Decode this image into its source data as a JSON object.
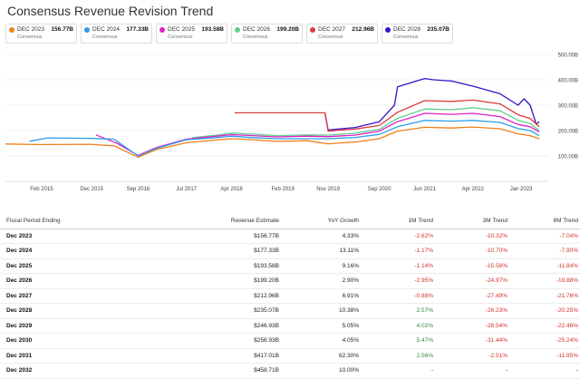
{
  "title": "Consensus Revenue Revision Trend",
  "legend": [
    {
      "name": "DEC 2023",
      "value": "156.77B",
      "sub": "Consensus",
      "color": "#f07f19"
    },
    {
      "name": "DEC 2024",
      "value": "177.33B",
      "sub": "Consensus",
      "color": "#2d9ee6"
    },
    {
      "name": "DEC 2025",
      "value": "193.58B",
      "sub": "Consensus",
      "color": "#e21fc7"
    },
    {
      "name": "DEC 2026",
      "value": "199.20B",
      "sub": "Consensus",
      "color": "#5fd08e"
    },
    {
      "name": "DEC 2027",
      "value": "212.96B",
      "sub": "Consensus",
      "color": "#d93c3c"
    },
    {
      "name": "DEC 2028",
      "value": "235.07B",
      "sub": "Consensus",
      "color": "#3a10c9"
    }
  ],
  "chart_data": {
    "type": "line",
    "ylim": [
      0,
      500
    ],
    "yticks": [
      "100.00B",
      "200.00B",
      "300.00B",
      "400.00B",
      "500.00B"
    ],
    "ytick_values": [
      100,
      200,
      300,
      400,
      500
    ],
    "xticks": [
      "Feb 2015",
      "Dec 2015",
      "Sep 2016",
      "Jul 2017",
      "Apr 2018",
      "Feb 2019",
      "Nov 2019",
      "Sep 2020",
      "Jun 2021",
      "Apr 2022",
      "Jan 2023"
    ],
    "xtick_values": [
      2015.1,
      2015.93,
      2016.7,
      2017.5,
      2018.25,
      2019.1,
      2019.85,
      2020.7,
      2021.45,
      2022.25,
      2023.05
    ],
    "xlim": [
      2014.5,
      2023.5
    ],
    "grid": true,
    "series": [
      {
        "name": "DEC 2023",
        "color": "#f07f19",
        "points": [
          [
            2014.5,
            147
          ],
          [
            2015.0,
            145
          ],
          [
            2015.3,
            145
          ],
          [
            2015.9,
            146
          ],
          [
            2016.3,
            140
          ],
          [
            2016.7,
            95
          ],
          [
            2017.0,
            125
          ],
          [
            2017.5,
            152
          ],
          [
            2018.0,
            163
          ],
          [
            2018.25,
            168
          ],
          [
            2018.6,
            164
          ],
          [
            2019.0,
            157
          ],
          [
            2019.5,
            160
          ],
          [
            2019.85,
            148
          ],
          [
            2020.3,
            155
          ],
          [
            2020.7,
            168
          ],
          [
            2021.0,
            198
          ],
          [
            2021.45,
            213
          ],
          [
            2021.9,
            210
          ],
          [
            2022.25,
            214
          ],
          [
            2022.7,
            207
          ],
          [
            2023.0,
            187
          ],
          [
            2023.2,
            180
          ],
          [
            2023.35,
            168
          ]
        ]
      },
      {
        "name": "DEC 2024",
        "color": "#2d9ee6",
        "points": [
          [
            2014.9,
            158
          ],
          [
            2015.2,
            171
          ],
          [
            2015.6,
            170
          ],
          [
            2015.93,
            169
          ],
          [
            2016.3,
            166
          ],
          [
            2016.7,
            100
          ],
          [
            2017.0,
            130
          ],
          [
            2017.5,
            164
          ],
          [
            2018.0,
            172
          ],
          [
            2018.25,
            178
          ],
          [
            2018.6,
            172
          ],
          [
            2019.0,
            168
          ],
          [
            2019.5,
            168
          ],
          [
            2019.85,
            168
          ],
          [
            2020.3,
            173
          ],
          [
            2020.7,
            185
          ],
          [
            2021.0,
            215
          ],
          [
            2021.45,
            240
          ],
          [
            2021.9,
            237
          ],
          [
            2022.25,
            240
          ],
          [
            2022.7,
            232
          ],
          [
            2023.0,
            208
          ],
          [
            2023.2,
            200
          ],
          [
            2023.35,
            180
          ]
        ]
      },
      {
        "name": "DEC 2025",
        "color": "#e21fc7",
        "points": [
          [
            2016.0,
            183
          ],
          [
            2016.35,
            150
          ],
          [
            2016.7,
            102
          ],
          [
            2017.0,
            133
          ],
          [
            2017.5,
            166
          ],
          [
            2018.0,
            178
          ],
          [
            2018.25,
            184
          ],
          [
            2018.6,
            180
          ],
          [
            2019.0,
            175
          ],
          [
            2019.5,
            178
          ],
          [
            2019.85,
            176
          ],
          [
            2020.3,
            182
          ],
          [
            2020.7,
            198
          ],
          [
            2021.0,
            235
          ],
          [
            2021.45,
            268
          ],
          [
            2021.9,
            264
          ],
          [
            2022.25,
            268
          ],
          [
            2022.7,
            255
          ],
          [
            2023.0,
            224
          ],
          [
            2023.2,
            215
          ],
          [
            2023.35,
            195
          ]
        ]
      },
      {
        "name": "DEC 2026",
        "color": "#5fd08e",
        "points": [
          [
            2017.6,
            172
          ],
          [
            2018.0,
            182
          ],
          [
            2018.25,
            190
          ],
          [
            2018.6,
            186
          ],
          [
            2019.0,
            180
          ],
          [
            2019.5,
            183
          ],
          [
            2019.85,
            182
          ],
          [
            2020.3,
            190
          ],
          [
            2020.7,
            205
          ],
          [
            2021.0,
            248
          ],
          [
            2021.45,
            285
          ],
          [
            2021.9,
            282
          ],
          [
            2022.25,
            290
          ],
          [
            2022.7,
            278
          ],
          [
            2023.0,
            240
          ],
          [
            2023.2,
            228
          ],
          [
            2023.35,
            200
          ]
        ]
      },
      {
        "name": "DEC 2027",
        "color": "#d93c3c",
        "points": [
          [
            2018.3,
            270
          ],
          [
            2018.8,
            270
          ],
          [
            2019.2,
            270
          ],
          [
            2019.8,
            270
          ],
          [
            2019.85,
            198
          ],
          [
            2020.3,
            206
          ],
          [
            2020.7,
            220
          ],
          [
            2021.0,
            272
          ],
          [
            2021.45,
            318
          ],
          [
            2021.9,
            315
          ],
          [
            2022.25,
            320
          ],
          [
            2022.7,
            305
          ],
          [
            2023.0,
            262
          ],
          [
            2023.2,
            248
          ],
          [
            2023.35,
            215
          ]
        ]
      },
      {
        "name": "DEC 2028",
        "color": "#3a10c9",
        "points": [
          [
            2019.8,
            265
          ],
          [
            2019.85,
            202
          ],
          [
            2020.3,
            212
          ],
          [
            2020.7,
            235
          ],
          [
            2020.95,
            300
          ],
          [
            2021.0,
            372
          ],
          [
            2021.45,
            405
          ],
          [
            2021.6,
            400
          ],
          [
            2021.9,
            395
          ],
          [
            2022.25,
            375
          ],
          [
            2022.7,
            345
          ],
          [
            2023.0,
            300
          ],
          [
            2023.1,
            325
          ],
          [
            2023.2,
            300
          ],
          [
            2023.3,
            225
          ],
          [
            2023.35,
            235
          ]
        ]
      }
    ]
  },
  "table": {
    "headers": [
      "Fiscal Period Ending",
      "Revenue Estimate",
      "YoY Growth",
      "1M Trend",
      "3M Trend",
      "6M Trend"
    ],
    "rows": [
      {
        "period": "Dec 2023",
        "estimate": "$156.77B",
        "yoy": "4.33%",
        "m1": "-2.62%",
        "m1c": "neg",
        "m3": "-10.32%",
        "m3c": "neg",
        "m6": "-7.04%",
        "m6c": "neg"
      },
      {
        "period": "Dec 2024",
        "estimate": "$177.33B",
        "yoy": "13.11%",
        "m1": "-1.17%",
        "m1c": "neg",
        "m3": "-10.70%",
        "m3c": "neg",
        "m6": "-7.90%",
        "m6c": "neg"
      },
      {
        "period": "Dec 2025",
        "estimate": "$193.58B",
        "yoy": "9.16%",
        "m1": "-1.14%",
        "m1c": "neg",
        "m3": "-15.56%",
        "m3c": "neg",
        "m6": "-11.84%",
        "m6c": "neg"
      },
      {
        "period": "Dec 2026",
        "estimate": "$199.20B",
        "yoy": "2.90%",
        "m1": "-2.95%",
        "m1c": "neg",
        "m3": "-24.97%",
        "m3c": "neg",
        "m6": "-19.88%",
        "m6c": "neg"
      },
      {
        "period": "Dec 2027",
        "estimate": "$212.96B",
        "yoy": "6.91%",
        "m1": "-0.88%",
        "m1c": "neg",
        "m3": "-27.49%",
        "m3c": "neg",
        "m6": "-21.76%",
        "m6c": "neg"
      },
      {
        "period": "Dec 2028",
        "estimate": "$235.07B",
        "yoy": "10.38%",
        "m1": "2.57%",
        "m1c": "pos",
        "m3": "-26.23%",
        "m3c": "neg",
        "m6": "-20.25%",
        "m6c": "neg"
      },
      {
        "period": "Dec 2029",
        "estimate": "$246.93B",
        "yoy": "5.05%",
        "m1": "4.02%",
        "m1c": "pos",
        "m3": "-28.54%",
        "m3c": "neg",
        "m6": "-22.46%",
        "m6c": "neg"
      },
      {
        "period": "Dec 2030",
        "estimate": "$256.93B",
        "yoy": "4.05%",
        "m1": "5.47%",
        "m1c": "pos",
        "m3": "-31.44%",
        "m3c": "neg",
        "m6": "-25.24%",
        "m6c": "neg"
      },
      {
        "period": "Dec 2031",
        "estimate": "$417.01B",
        "yoy": "62.30%",
        "m1": "2.56%",
        "m1c": "pos",
        "m3": "-2.51%",
        "m3c": "neg",
        "m6": "-11.95%",
        "m6c": "neg"
      },
      {
        "period": "Dec 2032",
        "estimate": "$458.71B",
        "yoy": "10.00%",
        "m1": "-",
        "m1c": "neu",
        "m3": "-",
        "m3c": "neu",
        "m6": "-",
        "m6c": "neu"
      }
    ]
  }
}
